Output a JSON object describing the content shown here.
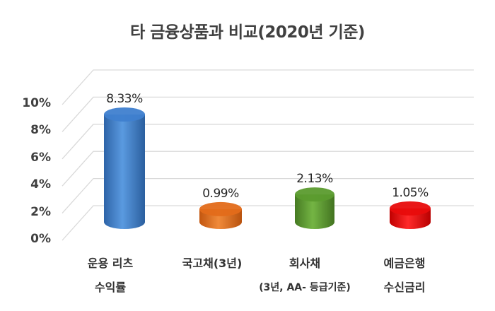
{
  "chart_data": {
    "type": "bar",
    "style": "3d-cylinder",
    "title": "타 금융상품과 비교(2020년 기준)",
    "xlabel": "",
    "ylabel": "",
    "ylim": [
      0,
      10
    ],
    "yticks": [
      "0%",
      "2%",
      "4%",
      "6%",
      "8%",
      "10%"
    ],
    "grid": true,
    "legend": "none",
    "categories": [
      [
        "운용 리츠",
        "수익률"
      ],
      [
        "국고채(3년)",
        ""
      ],
      [
        "회사채",
        "(3년, AA- 등급기준)"
      ],
      [
        "예금은행",
        "수신금리"
      ]
    ],
    "values": [
      8.33,
      0.99,
      2.13,
      1.05
    ],
    "value_labels": [
      "8.33%",
      "0.99%",
      "2.13%",
      "1.05%"
    ],
    "colors": [
      "#3f7fcf",
      "#e36c1a",
      "#5b9b2e",
      "#e80c0c"
    ]
  }
}
